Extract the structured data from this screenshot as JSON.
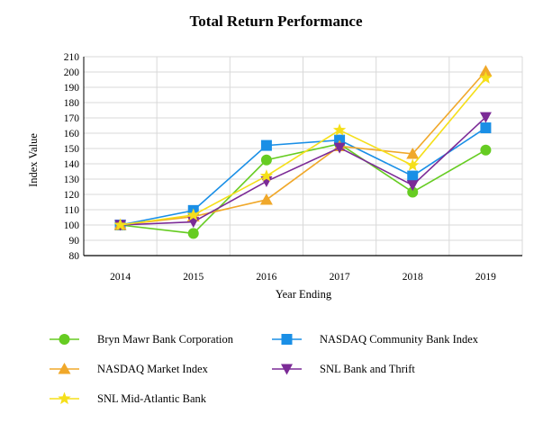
{
  "chart_data": {
    "type": "line",
    "title": "Total Return Performance",
    "xlabel": "Year Ending",
    "ylabel": "Index Value",
    "categories": [
      "2014",
      "2015",
      "2016",
      "2017",
      "2018",
      "2019"
    ],
    "ylim": [
      80,
      210
    ],
    "yticks": [
      80,
      90,
      100,
      110,
      120,
      130,
      140,
      150,
      160,
      170,
      180,
      190,
      200,
      210
    ],
    "grid": true,
    "series": [
      {
        "name": "Bryn Mawr Bank Corporation",
        "color": "#66cc22",
        "marker": "circle",
        "values": [
          100,
          94.5,
          142.5,
          153,
          121.5,
          149
        ]
      },
      {
        "name": "NASDAQ Community Bank Index",
        "color": "#1a8fe6",
        "marker": "square",
        "values": [
          100,
          109.5,
          152,
          155.5,
          132,
          163.5
        ]
      },
      {
        "name": "NASDAQ Market Index",
        "color": "#f0a82a",
        "marker": "triangle-up",
        "values": [
          100,
          105.5,
          116.5,
          151.5,
          146.5,
          200.5
        ]
      },
      {
        "name": "SNL Bank and Thrift",
        "color": "#7b2a96",
        "marker": "triangle-down",
        "values": [
          100,
          102,
          128.5,
          150.5,
          126,
          170.5
        ]
      },
      {
        "name": "SNL Mid-Atlantic Bank",
        "color": "#f5df1a",
        "marker": "star",
        "values": [
          100,
          106.5,
          132,
          162,
          139,
          196
        ]
      }
    ]
  }
}
